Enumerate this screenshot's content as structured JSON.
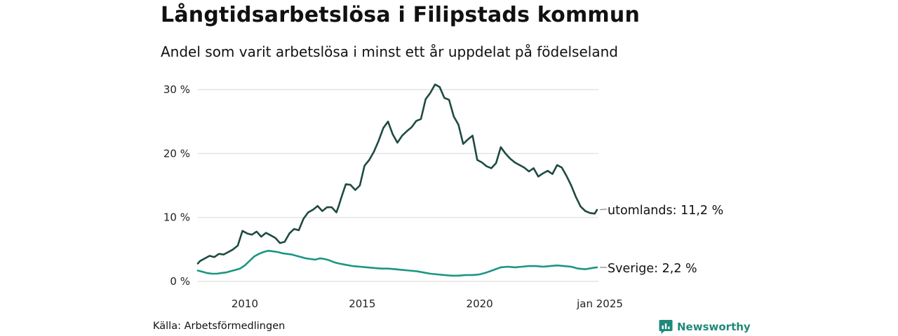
{
  "header": {
    "title": "Långtidsarbetslösa i Filipstads kommun",
    "subtitle": "Andel som varit arbetslösa i minst ett år uppdelat på födelseland"
  },
  "footer": {
    "source": "Källa: Arbetsförmedlingen",
    "brand": "Newsworthy"
  },
  "colors": {
    "utomlands": "#1e4a43",
    "sverige": "#1a9682",
    "grid": "#dddddd",
    "brand": "#1f8a7a"
  },
  "icons": {
    "brand": "bar-chart-speech-icon"
  },
  "chart_data": {
    "type": "line",
    "title": "Långtidsarbetslösa i Filipstads kommun",
    "subtitle": "Andel som varit arbetslösa i minst ett år uppdelat på födelseland",
    "xlabel": "",
    "ylabel": "",
    "x_range": [
      2008.0,
      2025.0
    ],
    "ylim": [
      0,
      31
    ],
    "grid": true,
    "legend": "direct labels at right end of lines",
    "y_ticks": [
      {
        "value": 0,
        "label": "0 %"
      },
      {
        "value": 10,
        "label": "10 %"
      },
      {
        "value": 20,
        "label": "20 %"
      },
      {
        "value": 30,
        "label": "30 %"
      }
    ],
    "x_ticks": [
      {
        "value": 2010,
        "label": "2010"
      },
      {
        "value": 2015,
        "label": "2015"
      },
      {
        "value": 2020,
        "label": "2020"
      },
      {
        "value": 2025,
        "label": "jan 2025"
      }
    ],
    "series": [
      {
        "name": "utomlands",
        "end_label": "utomlands: 11,2 %",
        "x": [
          2008.0,
          2008.1,
          2008.3,
          2008.5,
          2008.7,
          2008.9,
          2009.1,
          2009.3,
          2009.5,
          2009.7,
          2009.9,
          2010.1,
          2010.3,
          2010.5,
          2010.7,
          2010.9,
          2011.1,
          2011.3,
          2011.5,
          2011.7,
          2011.9,
          2012.1,
          2012.3,
          2012.5,
          2012.7,
          2012.9,
          2013.1,
          2013.3,
          2013.5,
          2013.7,
          2013.9,
          2014.0,
          2014.1,
          2014.3,
          2014.5,
          2014.7,
          2014.9,
          2015.1,
          2015.3,
          2015.5,
          2015.7,
          2015.9,
          2016.1,
          2016.3,
          2016.5,
          2016.7,
          2016.9,
          2017.1,
          2017.3,
          2017.5,
          2017.7,
          2017.9,
          2018.1,
          2018.3,
          2018.5,
          2018.7,
          2018.9,
          2019.1,
          2019.3,
          2019.5,
          2019.7,
          2019.9,
          2020.1,
          2020.3,
          2020.5,
          2020.7,
          2020.9,
          2021.1,
          2021.3,
          2021.5,
          2021.7,
          2021.9,
          2022.1,
          2022.3,
          2022.5,
          2022.7,
          2022.9,
          2023.1,
          2023.3,
          2023.5,
          2023.7,
          2023.9,
          2024.1,
          2024.3,
          2024.5,
          2024.7,
          2024.9,
          2025.0
        ],
        "values": [
          2.8,
          3.2,
          3.6,
          4.0,
          3.8,
          4.3,
          4.2,
          4.6,
          5.0,
          5.6,
          7.9,
          7.5,
          7.3,
          7.8,
          7.0,
          7.6,
          7.2,
          6.8,
          6.0,
          6.2,
          7.5,
          8.2,
          8.0,
          9.8,
          10.8,
          11.2,
          11.8,
          11.0,
          11.6,
          11.6,
          10.8,
          11.8,
          13.0,
          15.2,
          15.1,
          14.3,
          15.0,
          18.1,
          19.0,
          20.3,
          22.0,
          24.0,
          25.0,
          23.0,
          21.7,
          22.8,
          23.5,
          24.1,
          25.1,
          25.4,
          28.5,
          29.5,
          30.8,
          30.4,
          28.7,
          28.4,
          25.8,
          24.5,
          21.5,
          22.2,
          22.8,
          19.0,
          18.6,
          18.0,
          17.7,
          18.5,
          21.0,
          20.0,
          19.2,
          18.6,
          18.2,
          17.8,
          17.2,
          17.7,
          16.4,
          16.9,
          17.3,
          16.8,
          18.2,
          17.8,
          16.5,
          15.0,
          13.2,
          11.7,
          11.0,
          10.7,
          10.6,
          11.2
        ]
      },
      {
        "name": "Sverige",
        "end_label": "Sverige:  2,2 %",
        "x": [
          2008.0,
          2008.2,
          2008.4,
          2008.6,
          2008.8,
          2009.0,
          2009.2,
          2009.4,
          2009.6,
          2009.8,
          2010.0,
          2010.2,
          2010.4,
          2010.6,
          2010.8,
          2011.0,
          2011.2,
          2011.4,
          2011.6,
          2011.8,
          2012.0,
          2012.2,
          2012.4,
          2012.6,
          2012.8,
          2013.0,
          2013.2,
          2013.4,
          2013.6,
          2013.8,
          2014.0,
          2014.3,
          2014.6,
          2014.9,
          2015.2,
          2015.5,
          2015.8,
          2016.1,
          2016.4,
          2016.7,
          2017.0,
          2017.3,
          2017.6,
          2017.9,
          2018.2,
          2018.5,
          2018.8,
          2019.1,
          2019.4,
          2019.7,
          2020.0,
          2020.3,
          2020.6,
          2020.9,
          2021.2,
          2021.5,
          2021.8,
          2022.1,
          2022.4,
          2022.7,
          2023.0,
          2023.3,
          2023.6,
          2023.9,
          2024.2,
          2024.5,
          2024.8,
          2025.0
        ],
        "values": [
          1.7,
          1.5,
          1.3,
          1.2,
          1.2,
          1.3,
          1.4,
          1.6,
          1.8,
          2.0,
          2.5,
          3.2,
          3.9,
          4.3,
          4.6,
          4.8,
          4.7,
          4.6,
          4.4,
          4.3,
          4.2,
          4.0,
          3.8,
          3.6,
          3.5,
          3.4,
          3.6,
          3.5,
          3.3,
          3.0,
          2.8,
          2.6,
          2.4,
          2.3,
          2.2,
          2.1,
          2.0,
          2.0,
          1.9,
          1.8,
          1.7,
          1.6,
          1.4,
          1.2,
          1.1,
          1.0,
          0.9,
          0.9,
          1.0,
          1.0,
          1.1,
          1.4,
          1.8,
          2.2,
          2.3,
          2.2,
          2.3,
          2.4,
          2.4,
          2.3,
          2.4,
          2.5,
          2.4,
          2.3,
          2.0,
          1.9,
          2.1,
          2.2
        ]
      }
    ]
  }
}
